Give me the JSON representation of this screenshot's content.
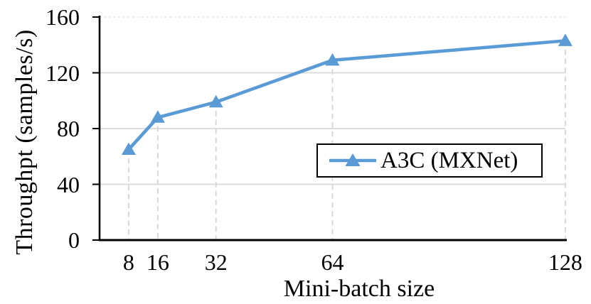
{
  "chart_data": {
    "type": "line",
    "title": "",
    "xlabel": "Mini-batch size",
    "ylabel": "Throughpt (samples/s)",
    "x": [
      8,
      16,
      32,
      64,
      128
    ],
    "xticks": [
      "8",
      "16",
      "32",
      "64",
      "128"
    ],
    "yticks": [
      0,
      40,
      80,
      120,
      160
    ],
    "xlim": [
      0,
      129
    ],
    "ylim": [
      0,
      160
    ],
    "series": [
      {
        "name": "A3C (MXNet)",
        "values": [
          65,
          88,
          99,
          129,
          143
        ],
        "color": "#5B9BD5",
        "marker": "triangle-up"
      }
    ],
    "legend_position": "inside-right-middle",
    "grid": {
      "horizontal": "solid",
      "top_border": "dotted",
      "vertical_drop_lines": "dashed"
    },
    "colors": {
      "series": "#5B9BD5",
      "gridline": "#D9D9D9",
      "drop_line": "#D6D6D6",
      "axis": "#000000",
      "text": "#000000",
      "legend_border": "#000000",
      "background": "#FFFFFF"
    }
  }
}
